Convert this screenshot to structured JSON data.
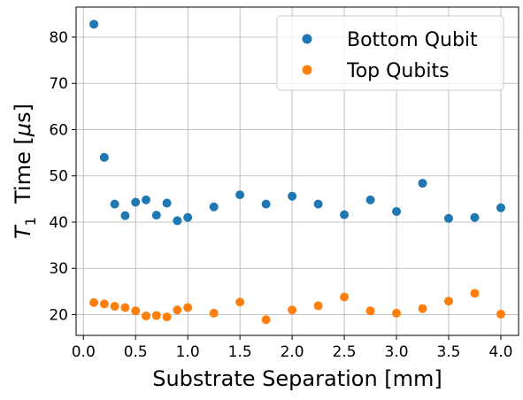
{
  "chart_data": {
    "type": "scatter",
    "xlabel": "Substrate Separation [mm]",
    "ylabel": {
      "t": "T",
      "sub": "1",
      "rest": "  Time [",
      "mu": "μ",
      "s": "s]"
    },
    "xlim": [
      -0.07,
      4.17
    ],
    "ylim": [
      15.5,
      86.5
    ],
    "xticks": [
      0.0,
      0.5,
      1.0,
      1.5,
      2.0,
      2.5,
      3.0,
      3.5,
      4.0
    ],
    "xtick_labels": [
      "0.0",
      "0.5",
      "1.0",
      "1.5",
      "2.0",
      "2.5",
      "3.0",
      "3.5",
      "4.0"
    ],
    "yticks": [
      20,
      30,
      40,
      50,
      60,
      70,
      80
    ],
    "ytick_labels": [
      "20",
      "30",
      "40",
      "50",
      "60",
      "70",
      "80"
    ],
    "grid": true,
    "legend_position": "top-right",
    "series": [
      {
        "name": "Bottom Qubit",
        "color": "#1f77b4",
        "points": [
          [
            0.1,
            82.8
          ],
          [
            0.2,
            54.0
          ],
          [
            0.3,
            43.9
          ],
          [
            0.4,
            41.4
          ],
          [
            0.5,
            44.3
          ],
          [
            0.6,
            44.8
          ],
          [
            0.7,
            41.5
          ],
          [
            0.8,
            44.1
          ],
          [
            0.9,
            40.3
          ],
          [
            1.0,
            41.0
          ],
          [
            1.25,
            43.3
          ],
          [
            1.5,
            45.9
          ],
          [
            1.75,
            43.9
          ],
          [
            2.0,
            45.6
          ],
          [
            2.25,
            43.9
          ],
          [
            2.5,
            41.6
          ],
          [
            2.75,
            44.8
          ],
          [
            3.0,
            42.3
          ],
          [
            3.25,
            48.4
          ],
          [
            3.5,
            40.8
          ],
          [
            3.75,
            41.0
          ],
          [
            4.0,
            43.1
          ]
        ]
      },
      {
        "name": "Top Qubits",
        "color": "#ff7f0e",
        "points": [
          [
            0.1,
            22.6
          ],
          [
            0.2,
            22.3
          ],
          [
            0.3,
            21.8
          ],
          [
            0.4,
            21.5
          ],
          [
            0.5,
            20.8
          ],
          [
            0.6,
            19.7
          ],
          [
            0.7,
            19.8
          ],
          [
            0.8,
            19.5
          ],
          [
            0.9,
            21.0
          ],
          [
            1.0,
            21.5
          ],
          [
            1.25,
            20.3
          ],
          [
            1.5,
            22.7
          ],
          [
            1.75,
            18.9
          ],
          [
            2.0,
            21.0
          ],
          [
            2.25,
            21.9
          ],
          [
            2.5,
            23.8
          ],
          [
            2.75,
            20.8
          ],
          [
            3.0,
            20.3
          ],
          [
            3.25,
            21.3
          ],
          [
            3.5,
            22.9
          ],
          [
            3.75,
            24.6
          ],
          [
            4.0,
            20.1
          ]
        ]
      }
    ]
  }
}
